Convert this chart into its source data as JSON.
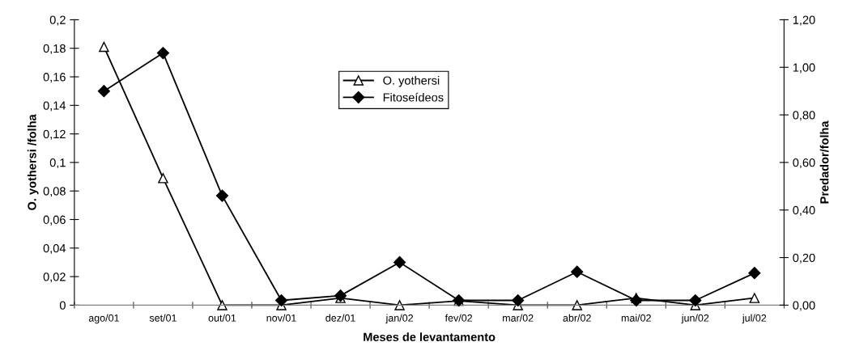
{
  "chart_data": {
    "type": "line",
    "xlabel": "Meses de levantamento",
    "ylabel": "O. yothersi /folha",
    "y2label": "Predador/folha",
    "categories": [
      "ago/01",
      "set/01",
      "out/01",
      "nov/01",
      "dez/01",
      "jan/02",
      "fev/02",
      "mar/02",
      "abr/02",
      "mai/02",
      "jun/02",
      "jul/02"
    ],
    "series": [
      {
        "name": "O. yothersi",
        "color": "#000000",
        "marker": "triangle",
        "values": [
          0.181,
          0.089,
          0,
          0,
          0.005,
          0,
          0.003,
          0,
          0,
          0.005,
          0,
          0.005
        ]
      },
      {
        "name": "Fitoseídeos",
        "color": "#000000",
        "marker": "diamond",
        "axis": "y2",
        "values": [
          0.9,
          1.06,
          0.46,
          0.02,
          0.04,
          0.18,
          0.02,
          0.02,
          0.14,
          0.02,
          0.02,
          0.135
        ]
      }
    ],
    "ylim": [
      0,
      0.2
    ],
    "yticks": [
      {
        "value": 0,
        "label": "0"
      },
      {
        "value": 0.02,
        "label": "0,02"
      },
      {
        "value": 0.04,
        "label": "0,04"
      },
      {
        "value": 0.06,
        "label": "0,06"
      },
      {
        "value": 0.08,
        "label": "0,08"
      },
      {
        "value": 0.1,
        "label": "0,1"
      },
      {
        "value": 0.12,
        "label": "0,12"
      },
      {
        "value": 0.14,
        "label": "0,14"
      },
      {
        "value": 0.16,
        "label": "0,16"
      },
      {
        "value": 0.18,
        "label": "0,18"
      },
      {
        "value": 0.2,
        "label": "0,2"
      }
    ],
    "y2lim": [
      0,
      1.2
    ],
    "y2ticks": [
      {
        "value": 0,
        "label": "0,00"
      },
      {
        "value": 0.2,
        "label": "0,20"
      },
      {
        "value": 0.4,
        "label": "0,40"
      },
      {
        "value": 0.6,
        "label": "0,60"
      },
      {
        "value": 0.8,
        "label": "0,80"
      },
      {
        "value": 1.0,
        "label": "1,00"
      },
      {
        "value": 1.2,
        "label": "1,20"
      }
    ],
    "legend": "top",
    "grid": false,
    "line_style": "solid"
  }
}
